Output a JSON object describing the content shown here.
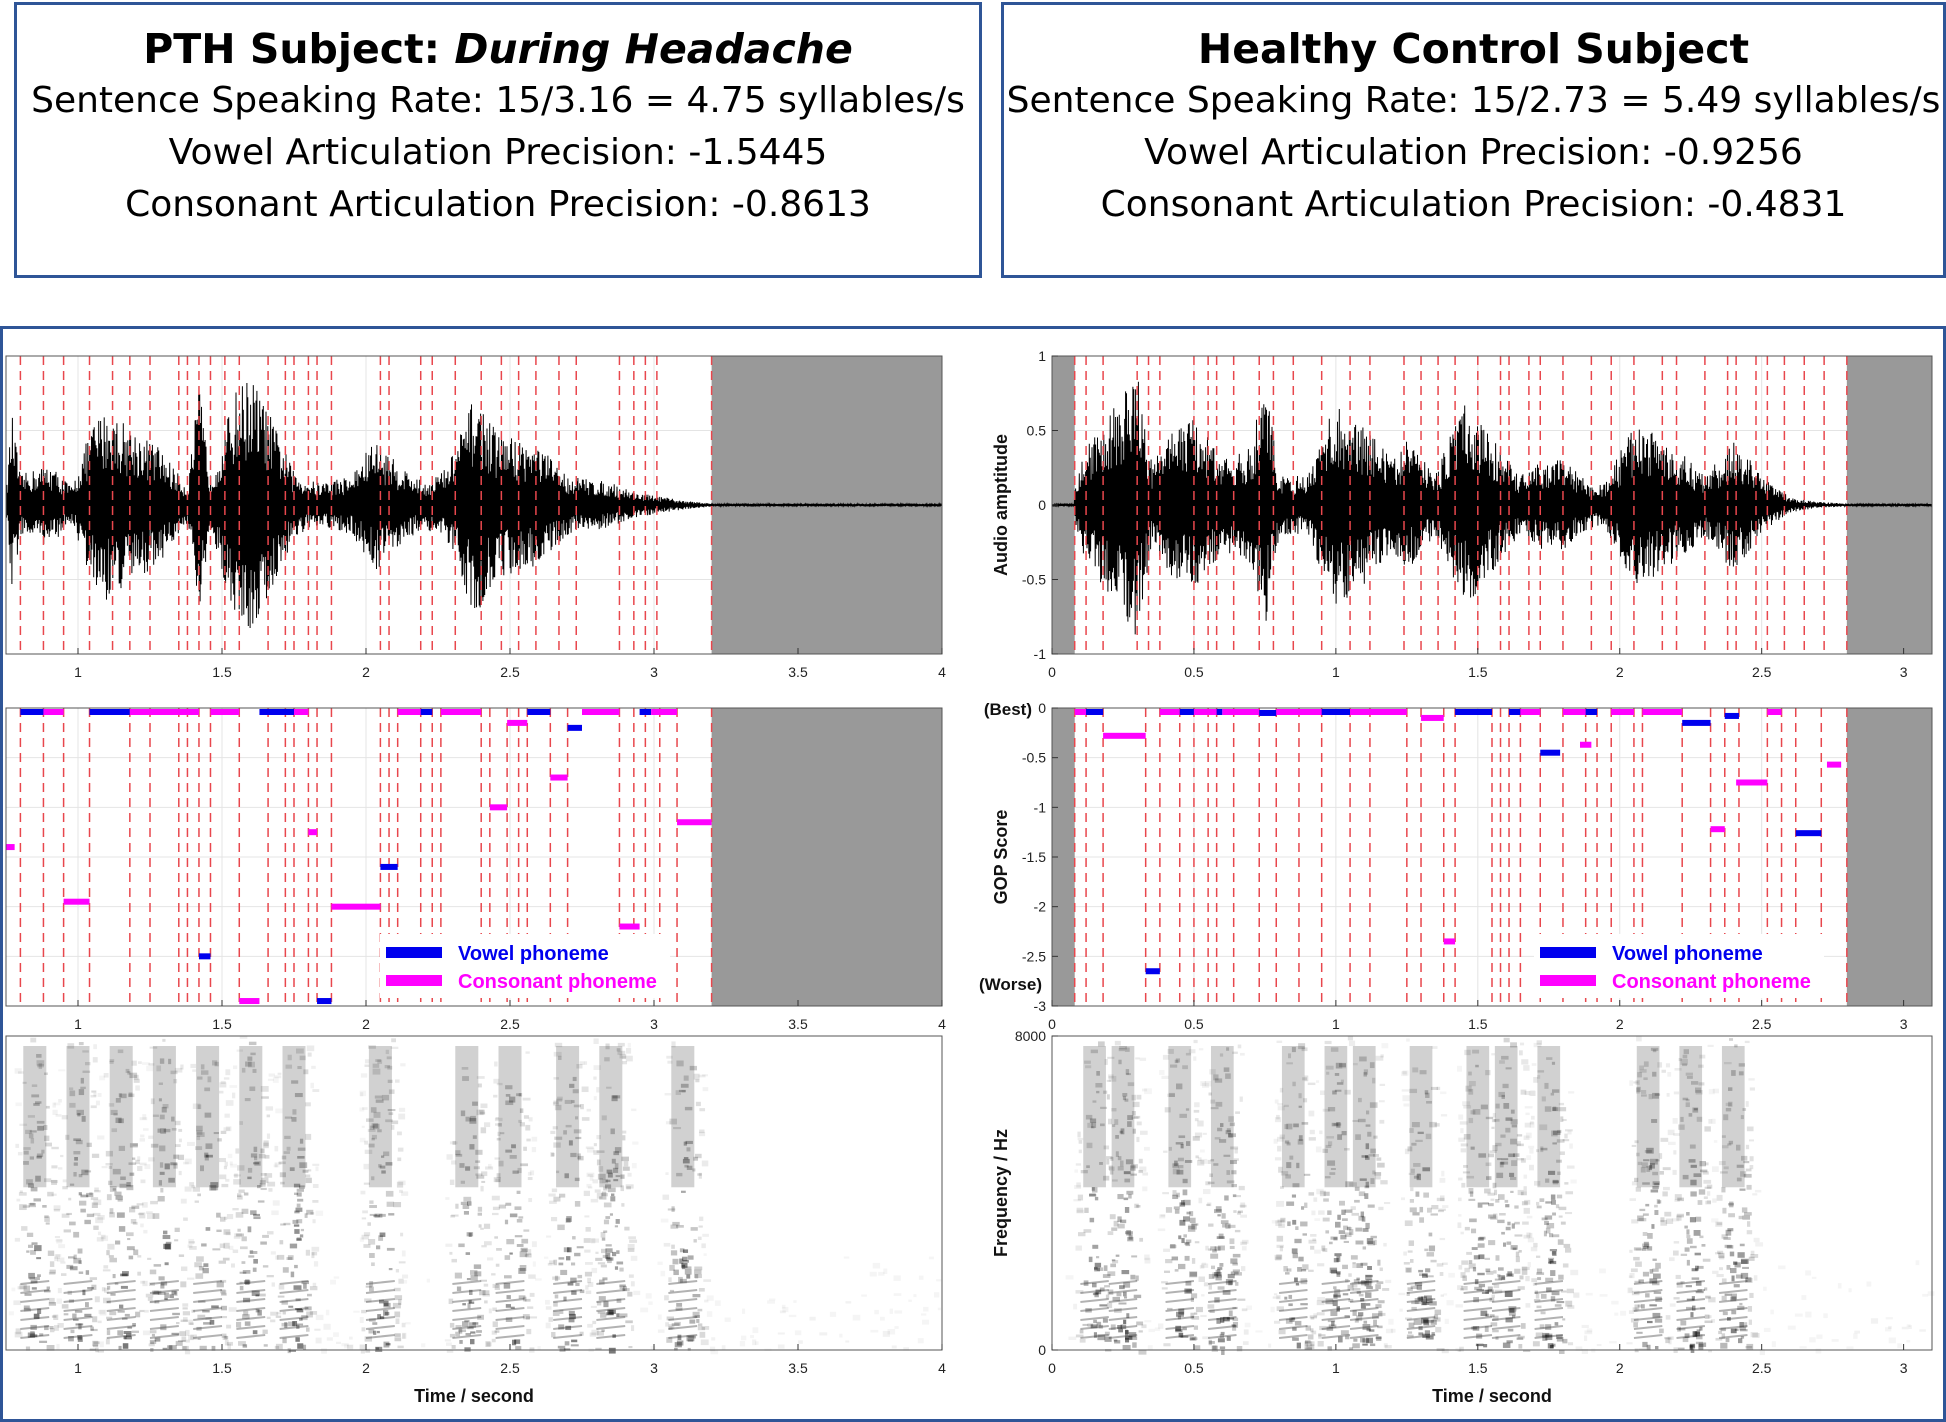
{
  "headers": {
    "left": {
      "title_prefix": "PTH Subject: ",
      "title_italic": "During Headache",
      "rate": "Sentence Speaking Rate: 15/3.16 = 4.75 syllables/s",
      "vowel": "Vowel Articulation Precision: -1.5445",
      "consonant": "Consonant Articulation Precision: -0.8613"
    },
    "right": {
      "title": "Healthy Control Subject",
      "rate": "Sentence Speaking Rate: 15/2.73 = 5.49 syllables/s",
      "vowel": "Vowel Articulation Precision: -0.9256",
      "consonant": "Consonant Articulation Precision: -0.4831"
    }
  },
  "colors": {
    "vowel": "#0000ee",
    "consonant": "#ff00ff",
    "boundary": "#e8474d",
    "silence": "#999999",
    "frame": "#2f5597"
  },
  "chart_data": [
    {
      "type": "line",
      "name": "pth-waveform",
      "ylabel": "",
      "xlim": [
        0.75,
        4.0
      ],
      "ylim": [
        -1,
        1
      ],
      "xticks": [
        "1",
        "1.5",
        "2",
        "2.5",
        "3",
        "3.5",
        "4"
      ],
      "xtick_values": [
        1,
        1.5,
        2,
        2.5,
        3,
        3.5,
        4
      ],
      "silence_from": 3.2,
      "envelope": [
        [
          0.75,
          0.05
        ],
        [
          0.77,
          0.62
        ],
        [
          0.8,
          0.2
        ],
        [
          0.9,
          0.28
        ],
        [
          0.98,
          0.12
        ],
        [
          1.05,
          0.55
        ],
        [
          1.1,
          0.65
        ],
        [
          1.2,
          0.5
        ],
        [
          1.28,
          0.4
        ],
        [
          1.38,
          0.12
        ],
        [
          1.42,
          0.8
        ],
        [
          1.46,
          0.2
        ],
        [
          1.55,
          0.78
        ],
        [
          1.6,
          0.88
        ],
        [
          1.68,
          0.55
        ],
        [
          1.75,
          0.22
        ],
        [
          1.83,
          0.15
        ],
        [
          1.95,
          0.2
        ],
        [
          2.03,
          0.45
        ],
        [
          2.1,
          0.3
        ],
        [
          2.2,
          0.15
        ],
        [
          2.28,
          0.25
        ],
        [
          2.38,
          0.75
        ],
        [
          2.45,
          0.5
        ],
        [
          2.6,
          0.4
        ],
        [
          2.7,
          0.2
        ],
        [
          2.85,
          0.15
        ],
        [
          2.95,
          0.08
        ],
        [
          3.1,
          0.03
        ],
        [
          3.2,
          0.01
        ],
        [
          4.0,
          0.01
        ]
      ],
      "boundaries": [
        0.8,
        0.88,
        0.95,
        1.04,
        1.12,
        1.18,
        1.25,
        1.35,
        1.38,
        1.42,
        1.46,
        1.51,
        1.56,
        1.66,
        1.72,
        1.75,
        1.8,
        1.83,
        1.88,
        2.05,
        2.08,
        2.19,
        2.23,
        2.31,
        2.4,
        2.47,
        2.53,
        2.59,
        2.67,
        2.73,
        2.88,
        2.93,
        2.97,
        3.01,
        3.2
      ]
    },
    {
      "type": "line",
      "name": "pth-gop",
      "ylabel": "",
      "xlim": [
        0.75,
        4.0
      ],
      "ylim": [
        -3,
        0
      ],
      "xticks": [
        "1",
        "1.5",
        "2",
        "2.5",
        "3",
        "3.5",
        "4"
      ],
      "xtick_values": [
        1,
        1.5,
        2,
        2.5,
        3,
        3.5,
        4
      ],
      "silence_from": 3.2,
      "legend": {
        "vowel": "Vowel phoneme",
        "consonant": "Consonant phoneme"
      },
      "segments": [
        {
          "kind": "vowel",
          "start": 0.8,
          "end": 0.88,
          "value": 0
        },
        {
          "kind": "consonant",
          "start": 0.75,
          "end": 0.78,
          "value": -1.4
        },
        {
          "kind": "consonant",
          "start": 0.88,
          "end": 0.95,
          "value": 0
        },
        {
          "kind": "consonant",
          "start": 0.95,
          "end": 1.04,
          "value": -1.95
        },
        {
          "kind": "vowel",
          "start": 1.04,
          "end": 1.18,
          "value": 0
        },
        {
          "kind": "consonant",
          "start": 1.18,
          "end": 1.42,
          "value": 0
        },
        {
          "kind": "vowel",
          "start": 1.42,
          "end": 1.46,
          "value": -2.5
        },
        {
          "kind": "consonant",
          "start": 1.46,
          "end": 1.56,
          "value": 0
        },
        {
          "kind": "consonant",
          "start": 1.56,
          "end": 1.63,
          "value": -2.95
        },
        {
          "kind": "vowel",
          "start": 1.63,
          "end": 1.75,
          "value": 0
        },
        {
          "kind": "consonant",
          "start": 1.75,
          "end": 1.8,
          "value": 0
        },
        {
          "kind": "consonant",
          "start": 1.8,
          "end": 1.83,
          "value": -1.25
        },
        {
          "kind": "vowel",
          "start": 1.83,
          "end": 1.88,
          "value": -2.95
        },
        {
          "kind": "consonant",
          "start": 1.88,
          "end": 2.05,
          "value": -2.0
        },
        {
          "kind": "vowel",
          "start": 2.05,
          "end": 2.11,
          "value": -1.6
        },
        {
          "kind": "consonant",
          "start": 2.11,
          "end": 2.19,
          "value": 0
        },
        {
          "kind": "vowel",
          "start": 2.19,
          "end": 2.23,
          "value": 0
        },
        {
          "kind": "consonant",
          "start": 2.26,
          "end": 2.4,
          "value": 0
        },
        {
          "kind": "consonant",
          "start": 2.43,
          "end": 2.49,
          "value": -1.0
        },
        {
          "kind": "consonant",
          "start": 2.49,
          "end": 2.56,
          "value": -0.15
        },
        {
          "kind": "vowel",
          "start": 2.56,
          "end": 2.64,
          "value": 0
        },
        {
          "kind": "consonant",
          "start": 2.64,
          "end": 2.7,
          "value": -0.7
        },
        {
          "kind": "vowel",
          "start": 2.7,
          "end": 2.75,
          "value": -0.2
        },
        {
          "kind": "consonant",
          "start": 2.75,
          "end": 2.88,
          "value": 0
        },
        {
          "kind": "consonant",
          "start": 2.88,
          "end": 2.95,
          "value": -2.2
        },
        {
          "kind": "vowel",
          "start": 2.95,
          "end": 2.99,
          "value": 0
        },
        {
          "kind": "consonant",
          "start": 2.99,
          "end": 3.08,
          "value": 0
        },
        {
          "kind": "consonant",
          "start": 3.08,
          "end": 3.2,
          "value": -1.15
        }
      ],
      "boundaries": [
        0.8,
        0.88,
        0.95,
        1.04,
        1.18,
        1.25,
        1.35,
        1.38,
        1.42,
        1.46,
        1.56,
        1.66,
        1.72,
        1.75,
        1.8,
        1.83,
        1.88,
        2.05,
        2.08,
        2.11,
        2.19,
        2.23,
        2.26,
        2.4,
        2.43,
        2.49,
        2.53,
        2.56,
        2.64,
        2.7,
        2.88,
        2.93,
        2.97,
        3.02,
        3.08,
        3.2
      ]
    },
    {
      "type": "heatmap",
      "name": "pth-spectrogram",
      "xlabel": "Time / second",
      "ylabel": "",
      "xlim": [
        0.75,
        4.0
      ],
      "ylim": [
        0,
        8000
      ],
      "xticks": [
        "1",
        "1.5",
        "2",
        "2.5",
        "3",
        "3.5",
        "4"
      ],
      "xtick_values": [
        1,
        1.5,
        2,
        2.5,
        3,
        3.5,
        4
      ],
      "energy_regions": [
        0.85,
        1.0,
        1.15,
        1.3,
        1.45,
        1.6,
        1.75,
        2.05,
        2.35,
        2.5,
        2.7,
        2.85,
        3.1
      ]
    },
    {
      "type": "line",
      "name": "hc-waveform",
      "ylabel": "Audio amptitude",
      "xlim": [
        0,
        3.1
      ],
      "ylim": [
        -1,
        1
      ],
      "yticks": [
        "-1",
        "-0.5",
        "0",
        "0.5",
        "1"
      ],
      "ytick_values": [
        -1,
        -0.5,
        0,
        0.5,
        1
      ],
      "xticks": [
        "0",
        "0.5",
        "1",
        "1.5",
        "2",
        "2.5",
        "3"
      ],
      "xtick_values": [
        0,
        0.5,
        1,
        1.5,
        2,
        2.5,
        3
      ],
      "silence_before": 0.08,
      "silence_from": 2.8,
      "envelope": [
        [
          0.08,
          0.1
        ],
        [
          0.12,
          0.4
        ],
        [
          0.2,
          0.6
        ],
        [
          0.3,
          0.9
        ],
        [
          0.35,
          0.3
        ],
        [
          0.45,
          0.55
        ],
        [
          0.5,
          0.6
        ],
        [
          0.6,
          0.3
        ],
        [
          0.7,
          0.4
        ],
        [
          0.75,
          0.85
        ],
        [
          0.8,
          0.2
        ],
        [
          0.9,
          0.2
        ],
        [
          1.0,
          0.7
        ],
        [
          1.1,
          0.55
        ],
        [
          1.2,
          0.3
        ],
        [
          1.25,
          0.45
        ],
        [
          1.35,
          0.2
        ],
        [
          1.45,
          0.7
        ],
        [
          1.55,
          0.45
        ],
        [
          1.65,
          0.2
        ],
        [
          1.72,
          0.3
        ],
        [
          1.8,
          0.3
        ],
        [
          1.9,
          0.15
        ],
        [
          1.95,
          0.15
        ],
        [
          2.05,
          0.55
        ],
        [
          2.15,
          0.45
        ],
        [
          2.25,
          0.3
        ],
        [
          2.3,
          0.2
        ],
        [
          2.4,
          0.45
        ],
        [
          2.5,
          0.2
        ],
        [
          2.6,
          0.05
        ],
        [
          2.7,
          0.02
        ],
        [
          2.8,
          0.01
        ],
        [
          3.1,
          0.01
        ]
      ],
      "boundaries": [
        0.08,
        0.12,
        0.18,
        0.3,
        0.34,
        0.38,
        0.5,
        0.55,
        0.58,
        0.64,
        0.73,
        0.78,
        0.85,
        0.95,
        1.05,
        1.12,
        1.24,
        1.3,
        1.36,
        1.42,
        1.5,
        1.58,
        1.61,
        1.68,
        1.72,
        1.8,
        1.9,
        1.97,
        2.05,
        2.15,
        2.2,
        2.3,
        2.38,
        2.41,
        2.48,
        2.52,
        2.58,
        2.65,
        2.72,
        2.8
      ]
    },
    {
      "type": "line",
      "name": "hc-gop",
      "ylabel": "GOP Score",
      "xlim": [
        0,
        3.1
      ],
      "ylim": [
        -3,
        0
      ],
      "yticks": [
        "-3",
        "-2.5",
        "-2",
        "-1.5",
        "-1",
        "-0.5",
        "0"
      ],
      "ytick_values": [
        -3,
        -2.5,
        -2,
        -1.5,
        -1,
        -0.5,
        0
      ],
      "xticks": [
        "0",
        "0.5",
        "1",
        "1.5",
        "2",
        "2.5",
        "3"
      ],
      "xtick_values": [
        0,
        0.5,
        1,
        1.5,
        2,
        2.5,
        3
      ],
      "annotations": {
        "best": "(Best)",
        "worse": "(Worse)"
      },
      "silence_before": 0.08,
      "silence_from": 2.8,
      "legend": {
        "vowel": "Vowel phoneme",
        "consonant": "Consonant phoneme"
      },
      "segments": [
        {
          "kind": "consonant",
          "start": 0.08,
          "end": 0.12,
          "value": 0
        },
        {
          "kind": "vowel",
          "start": 0.12,
          "end": 0.18,
          "value": 0
        },
        {
          "kind": "consonant",
          "start": 0.18,
          "end": 0.33,
          "value": -0.28
        },
        {
          "kind": "vowel",
          "start": 0.33,
          "end": 0.38,
          "value": -2.65
        },
        {
          "kind": "consonant",
          "start": 0.38,
          "end": 0.45,
          "value": 0
        },
        {
          "kind": "vowel",
          "start": 0.45,
          "end": 0.5,
          "value": 0
        },
        {
          "kind": "consonant",
          "start": 0.5,
          "end": 0.58,
          "value": 0
        },
        {
          "kind": "vowel",
          "start": 0.58,
          "end": 0.6,
          "value": 0
        },
        {
          "kind": "consonant",
          "start": 0.6,
          "end": 0.73,
          "value": 0
        },
        {
          "kind": "vowel",
          "start": 0.73,
          "end": 0.79,
          "value": -0.05
        },
        {
          "kind": "consonant",
          "start": 0.79,
          "end": 0.95,
          "value": 0
        },
        {
          "kind": "vowel",
          "start": 0.95,
          "end": 1.05,
          "value": 0
        },
        {
          "kind": "consonant",
          "start": 1.05,
          "end": 1.25,
          "value": 0
        },
        {
          "kind": "consonant",
          "start": 1.3,
          "end": 1.38,
          "value": -0.1
        },
        {
          "kind": "consonant",
          "start": 1.38,
          "end": 1.42,
          "value": -2.35
        },
        {
          "kind": "vowel",
          "start": 1.42,
          "end": 1.55,
          "value": 0
        },
        {
          "kind": "vowel",
          "start": 1.61,
          "end": 1.65,
          "value": 0
        },
        {
          "kind": "consonant",
          "start": 1.65,
          "end": 1.72,
          "value": 0
        },
        {
          "kind": "vowel",
          "start": 1.72,
          "end": 1.79,
          "value": -0.45
        },
        {
          "kind": "consonant",
          "start": 1.8,
          "end": 1.88,
          "value": 0
        },
        {
          "kind": "vowel",
          "start": 1.88,
          "end": 1.92,
          "value": 0
        },
        {
          "kind": "consonant",
          "start": 1.86,
          "end": 1.9,
          "value": -0.37
        },
        {
          "kind": "consonant",
          "start": 1.97,
          "end": 2.05,
          "value": 0
        },
        {
          "kind": "consonant",
          "start": 2.08,
          "end": 2.22,
          "value": 0
        },
        {
          "kind": "vowel",
          "start": 2.22,
          "end": 2.32,
          "value": -0.15
        },
        {
          "kind": "consonant",
          "start": 2.32,
          "end": 2.37,
          "value": -1.22
        },
        {
          "kind": "vowel",
          "start": 2.37,
          "end": 2.42,
          "value": -0.08
        },
        {
          "kind": "consonant",
          "start": 2.41,
          "end": 2.52,
          "value": -0.75
        },
        {
          "kind": "consonant",
          "start": 2.52,
          "end": 2.57,
          "value": 0
        },
        {
          "kind": "vowel",
          "start": 2.62,
          "end": 2.71,
          "value": -1.26
        },
        {
          "kind": "consonant",
          "start": 2.73,
          "end": 2.78,
          "value": -0.57
        }
      ],
      "boundaries": [
        0.08,
        0.12,
        0.18,
        0.33,
        0.38,
        0.45,
        0.5,
        0.55,
        0.58,
        0.64,
        0.73,
        0.79,
        0.87,
        0.95,
        1.05,
        1.12,
        1.25,
        1.3,
        1.38,
        1.42,
        1.55,
        1.58,
        1.61,
        1.65,
        1.72,
        1.8,
        1.88,
        1.92,
        1.97,
        2.05,
        2.08,
        2.22,
        2.32,
        2.37,
        2.42,
        2.52,
        2.57,
        2.62,
        2.71,
        2.8
      ]
    },
    {
      "type": "heatmap",
      "name": "hc-spectrogram",
      "xlabel": "Time / second",
      "ylabel": "Frequency / Hz",
      "xlim": [
        0,
        3.1
      ],
      "ylim": [
        0,
        8000
      ],
      "yticks": [
        "0",
        "8000"
      ],
      "ytick_values": [
        0,
        8000
      ],
      "xticks": [
        "0",
        "0.5",
        "1",
        "1.5",
        "2",
        "2.5",
        "3"
      ],
      "xtick_values": [
        0,
        0.5,
        1,
        1.5,
        2,
        2.5,
        3
      ],
      "energy_regions": [
        0.15,
        0.25,
        0.45,
        0.6,
        0.85,
        1.0,
        1.1,
        1.3,
        1.5,
        1.6,
        1.75,
        2.1,
        2.25,
        2.4
      ]
    }
  ]
}
